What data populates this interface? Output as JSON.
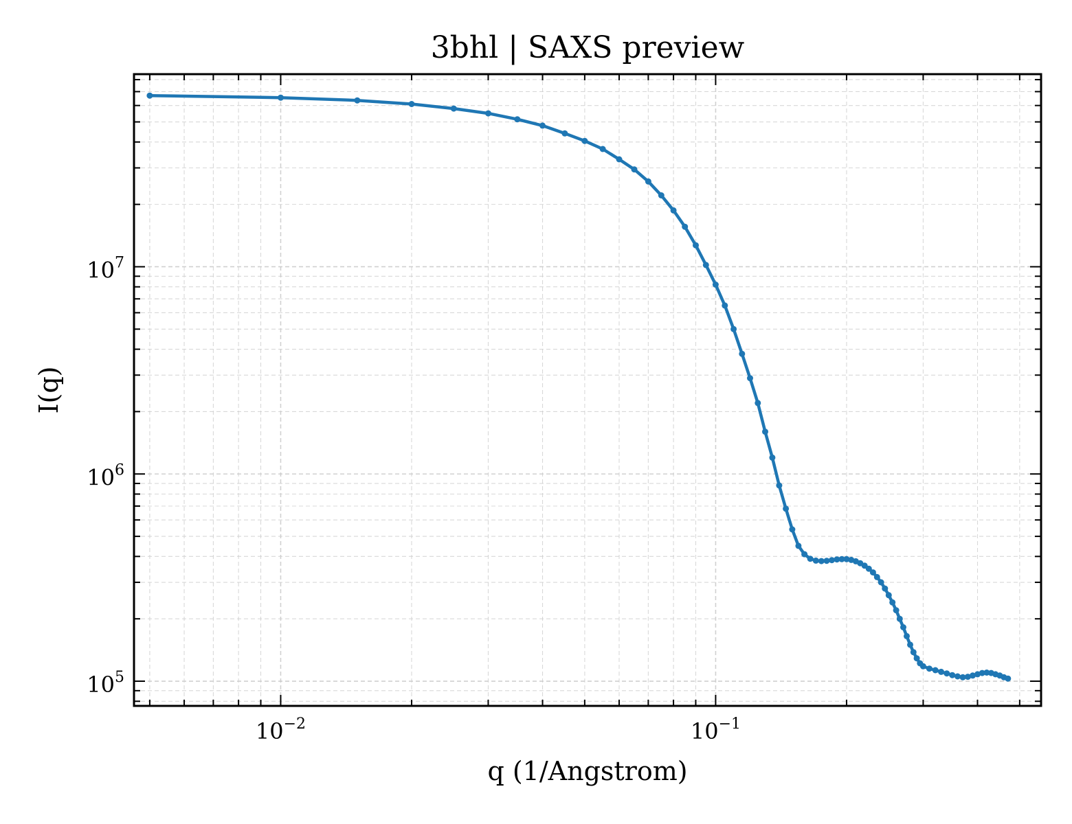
{
  "chart_data": {
    "type": "line",
    "title": "3bhl | SAXS preview",
    "xlabel": "q (1/Angstrom)",
    "ylabel": "I(q)",
    "xscale": "log",
    "yscale": "log",
    "xlim": [
      0.0046,
      0.56
    ],
    "ylim": [
      76000,
      85000000
    ],
    "grid": true,
    "x_major_ticks": [
      {
        "value": 0.01,
        "label": "10",
        "exp": "−2"
      },
      {
        "value": 0.1,
        "label": "10",
        "exp": "−1"
      }
    ],
    "y_major_ticks": [
      {
        "value": 100000,
        "label": "10",
        "exp": "5"
      },
      {
        "value": 1000000,
        "label": "10",
        "exp": "6"
      },
      {
        "value": 10000000,
        "label": "10",
        "exp": "7"
      }
    ],
    "series": [
      {
        "color": "#1f77b4",
        "marker": "circle",
        "points": [
          [
            0.005,
            67000000
          ],
          [
            0.01,
            65500000
          ],
          [
            0.015,
            63500000
          ],
          [
            0.02,
            61000000
          ],
          [
            0.025,
            58000000
          ],
          [
            0.03,
            55000000
          ],
          [
            0.035,
            51500000
          ],
          [
            0.04,
            48000000
          ],
          [
            0.045,
            44000000
          ],
          [
            0.05,
            40500000
          ],
          [
            0.055,
            37000000
          ],
          [
            0.06,
            33000000
          ],
          [
            0.065,
            29500000
          ],
          [
            0.07,
            25800000
          ],
          [
            0.075,
            22100000
          ],
          [
            0.08,
            18700000
          ],
          [
            0.085,
            15600000
          ],
          [
            0.09,
            12700000
          ],
          [
            0.095,
            10200000
          ],
          [
            0.1,
            8200000
          ],
          [
            0.105,
            6500000
          ],
          [
            0.11,
            5000000
          ],
          [
            0.115,
            3800000
          ],
          [
            0.12,
            2900000
          ],
          [
            0.125,
            2200000
          ],
          [
            0.13,
            1600000
          ],
          [
            0.135,
            1200000
          ],
          [
            0.14,
            880000
          ],
          [
            0.145,
            680000
          ],
          [
            0.15,
            540000
          ],
          [
            0.155,
            450000
          ],
          [
            0.16,
            410000
          ],
          [
            0.165,
            390000
          ],
          [
            0.17,
            382000
          ],
          [
            0.175,
            380000
          ],
          [
            0.18,
            381000
          ],
          [
            0.185,
            384000
          ],
          [
            0.19,
            387000
          ],
          [
            0.195,
            388000
          ],
          [
            0.2,
            388000
          ],
          [
            0.205,
            385000
          ],
          [
            0.21,
            379000
          ],
          [
            0.215,
            371000
          ],
          [
            0.22,
            361000
          ],
          [
            0.225,
            349000
          ],
          [
            0.23,
            335000
          ],
          [
            0.235,
            318000
          ],
          [
            0.24,
            300000
          ],
          [
            0.245,
            280000
          ],
          [
            0.25,
            260000
          ],
          [
            0.255,
            240000
          ],
          [
            0.26,
            220000
          ],
          [
            0.265,
            200000
          ],
          [
            0.27,
            182000
          ],
          [
            0.275,
            165000
          ],
          [
            0.28,
            150000
          ],
          [
            0.285,
            138000
          ],
          [
            0.29,
            129000
          ],
          [
            0.295,
            122000
          ],
          [
            0.3,
            118000
          ],
          [
            0.31,
            115000
          ],
          [
            0.32,
            113000
          ],
          [
            0.33,
            111000
          ],
          [
            0.34,
            109000
          ],
          [
            0.35,
            107000
          ],
          [
            0.36,
            105500
          ],
          [
            0.37,
            104500
          ],
          [
            0.38,
            105000
          ],
          [
            0.39,
            106500
          ],
          [
            0.4,
            108000
          ],
          [
            0.41,
            109500
          ],
          [
            0.42,
            110000
          ],
          [
            0.43,
            109500
          ],
          [
            0.44,
            108000
          ],
          [
            0.45,
            106500
          ],
          [
            0.46,
            104500
          ],
          [
            0.47,
            103000
          ]
        ]
      }
    ]
  }
}
